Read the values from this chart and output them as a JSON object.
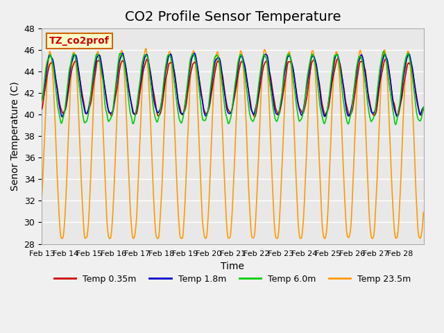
{
  "title": "CO2 Profile Sensor Temperature",
  "ylabel": "Senor Temperature (C)",
  "xlabel": "Time",
  "annotation": "TZ_co2prof",
  "ylim": [
    28,
    48
  ],
  "yticks": [
    28,
    30,
    32,
    34,
    36,
    38,
    40,
    42,
    44,
    46,
    48
  ],
  "x_labels": [
    "Feb 13",
    "Feb 14",
    "Feb 15",
    "Feb 16",
    "Feb 17",
    "Feb 18",
    "Feb 19",
    "Feb 20",
    "Feb 21",
    "Feb 22",
    "Feb 23",
    "Feb 24",
    "Feb 25",
    "Feb 26",
    "Feb 27",
    "Feb 28"
  ],
  "colors": {
    "red": "#cc0000",
    "blue": "#0000cc",
    "green": "#00cc00",
    "orange": "#ff9900"
  },
  "legend_labels": [
    "Temp 0.35m",
    "Temp 1.8m",
    "Temp 6.0m",
    "Temp 23.5m"
  ],
  "bg_color": "#e8e8e8",
  "grid_color": "#ffffff",
  "title_fontsize": 14,
  "label_fontsize": 10,
  "tick_fontsize": 9
}
